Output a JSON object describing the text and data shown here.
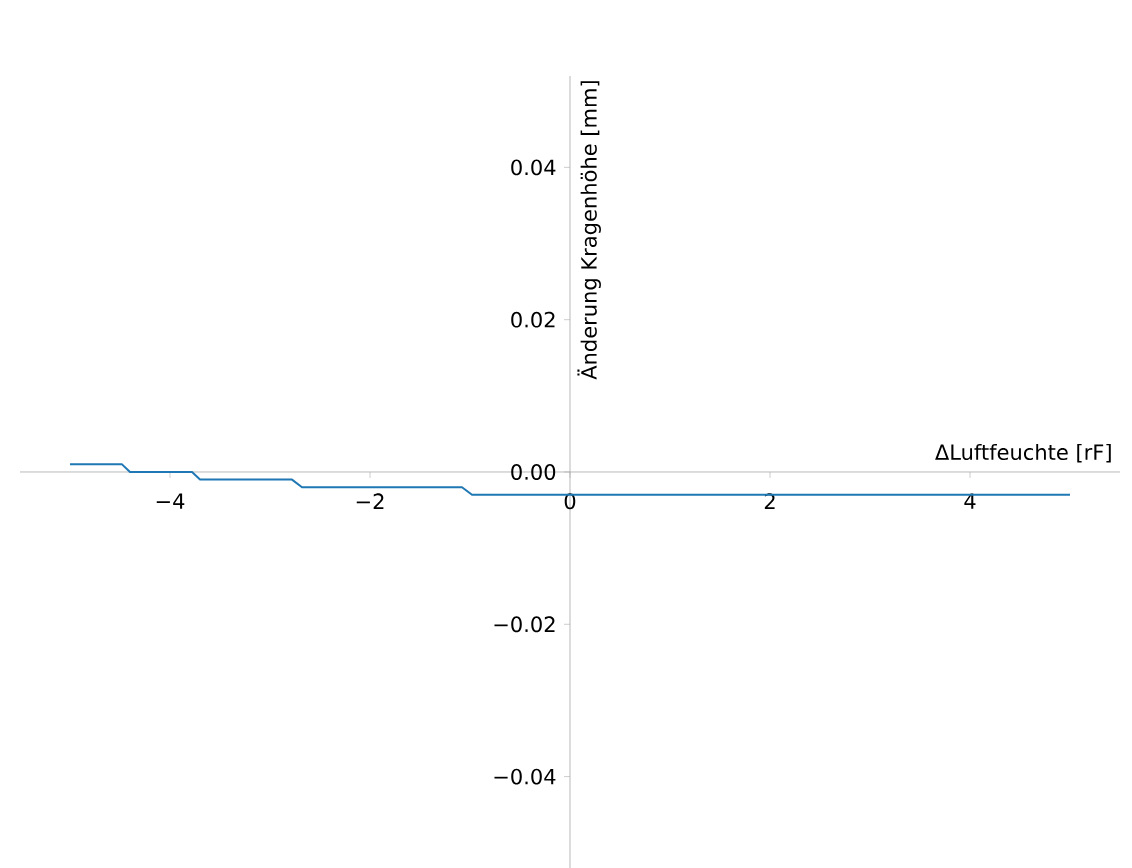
{
  "chart_data": {
    "type": "line",
    "xlabel": "ΔLuftfeuchte [rF]",
    "ylabel": "Änderung Kragenhöhe [mm]",
    "x": [
      -5.0,
      -4.48,
      -4.4,
      -3.78,
      -3.7,
      -2.78,
      -2.68,
      -1.08,
      -0.98,
      5.0
    ],
    "series": [
      {
        "color": "#1f77b4",
        "values": [
          0.001,
          0.001,
          0.0,
          0.0,
          -0.001,
          -0.001,
          -0.002,
          -0.002,
          -0.003,
          -0.003
        ]
      }
    ],
    "xlim": [
      -5.5,
      5.5
    ],
    "ylim": [
      -0.052,
      0.052
    ],
    "xticks": [
      {
        "value": -4,
        "label": "−4"
      },
      {
        "value": -2,
        "label": "−2"
      },
      0,
      2,
      4
    ],
    "yticks": [
      {
        "value": -0.04,
        "label": "−0.04"
      },
      {
        "value": -0.02,
        "label": "−0.02"
      },
      {
        "value": 0,
        "label": "0.00"
      },
      {
        "value": 0.02,
        "label": "0.02"
      },
      {
        "value": 0.04,
        "label": "0.04"
      }
    ],
    "grid": false
  }
}
